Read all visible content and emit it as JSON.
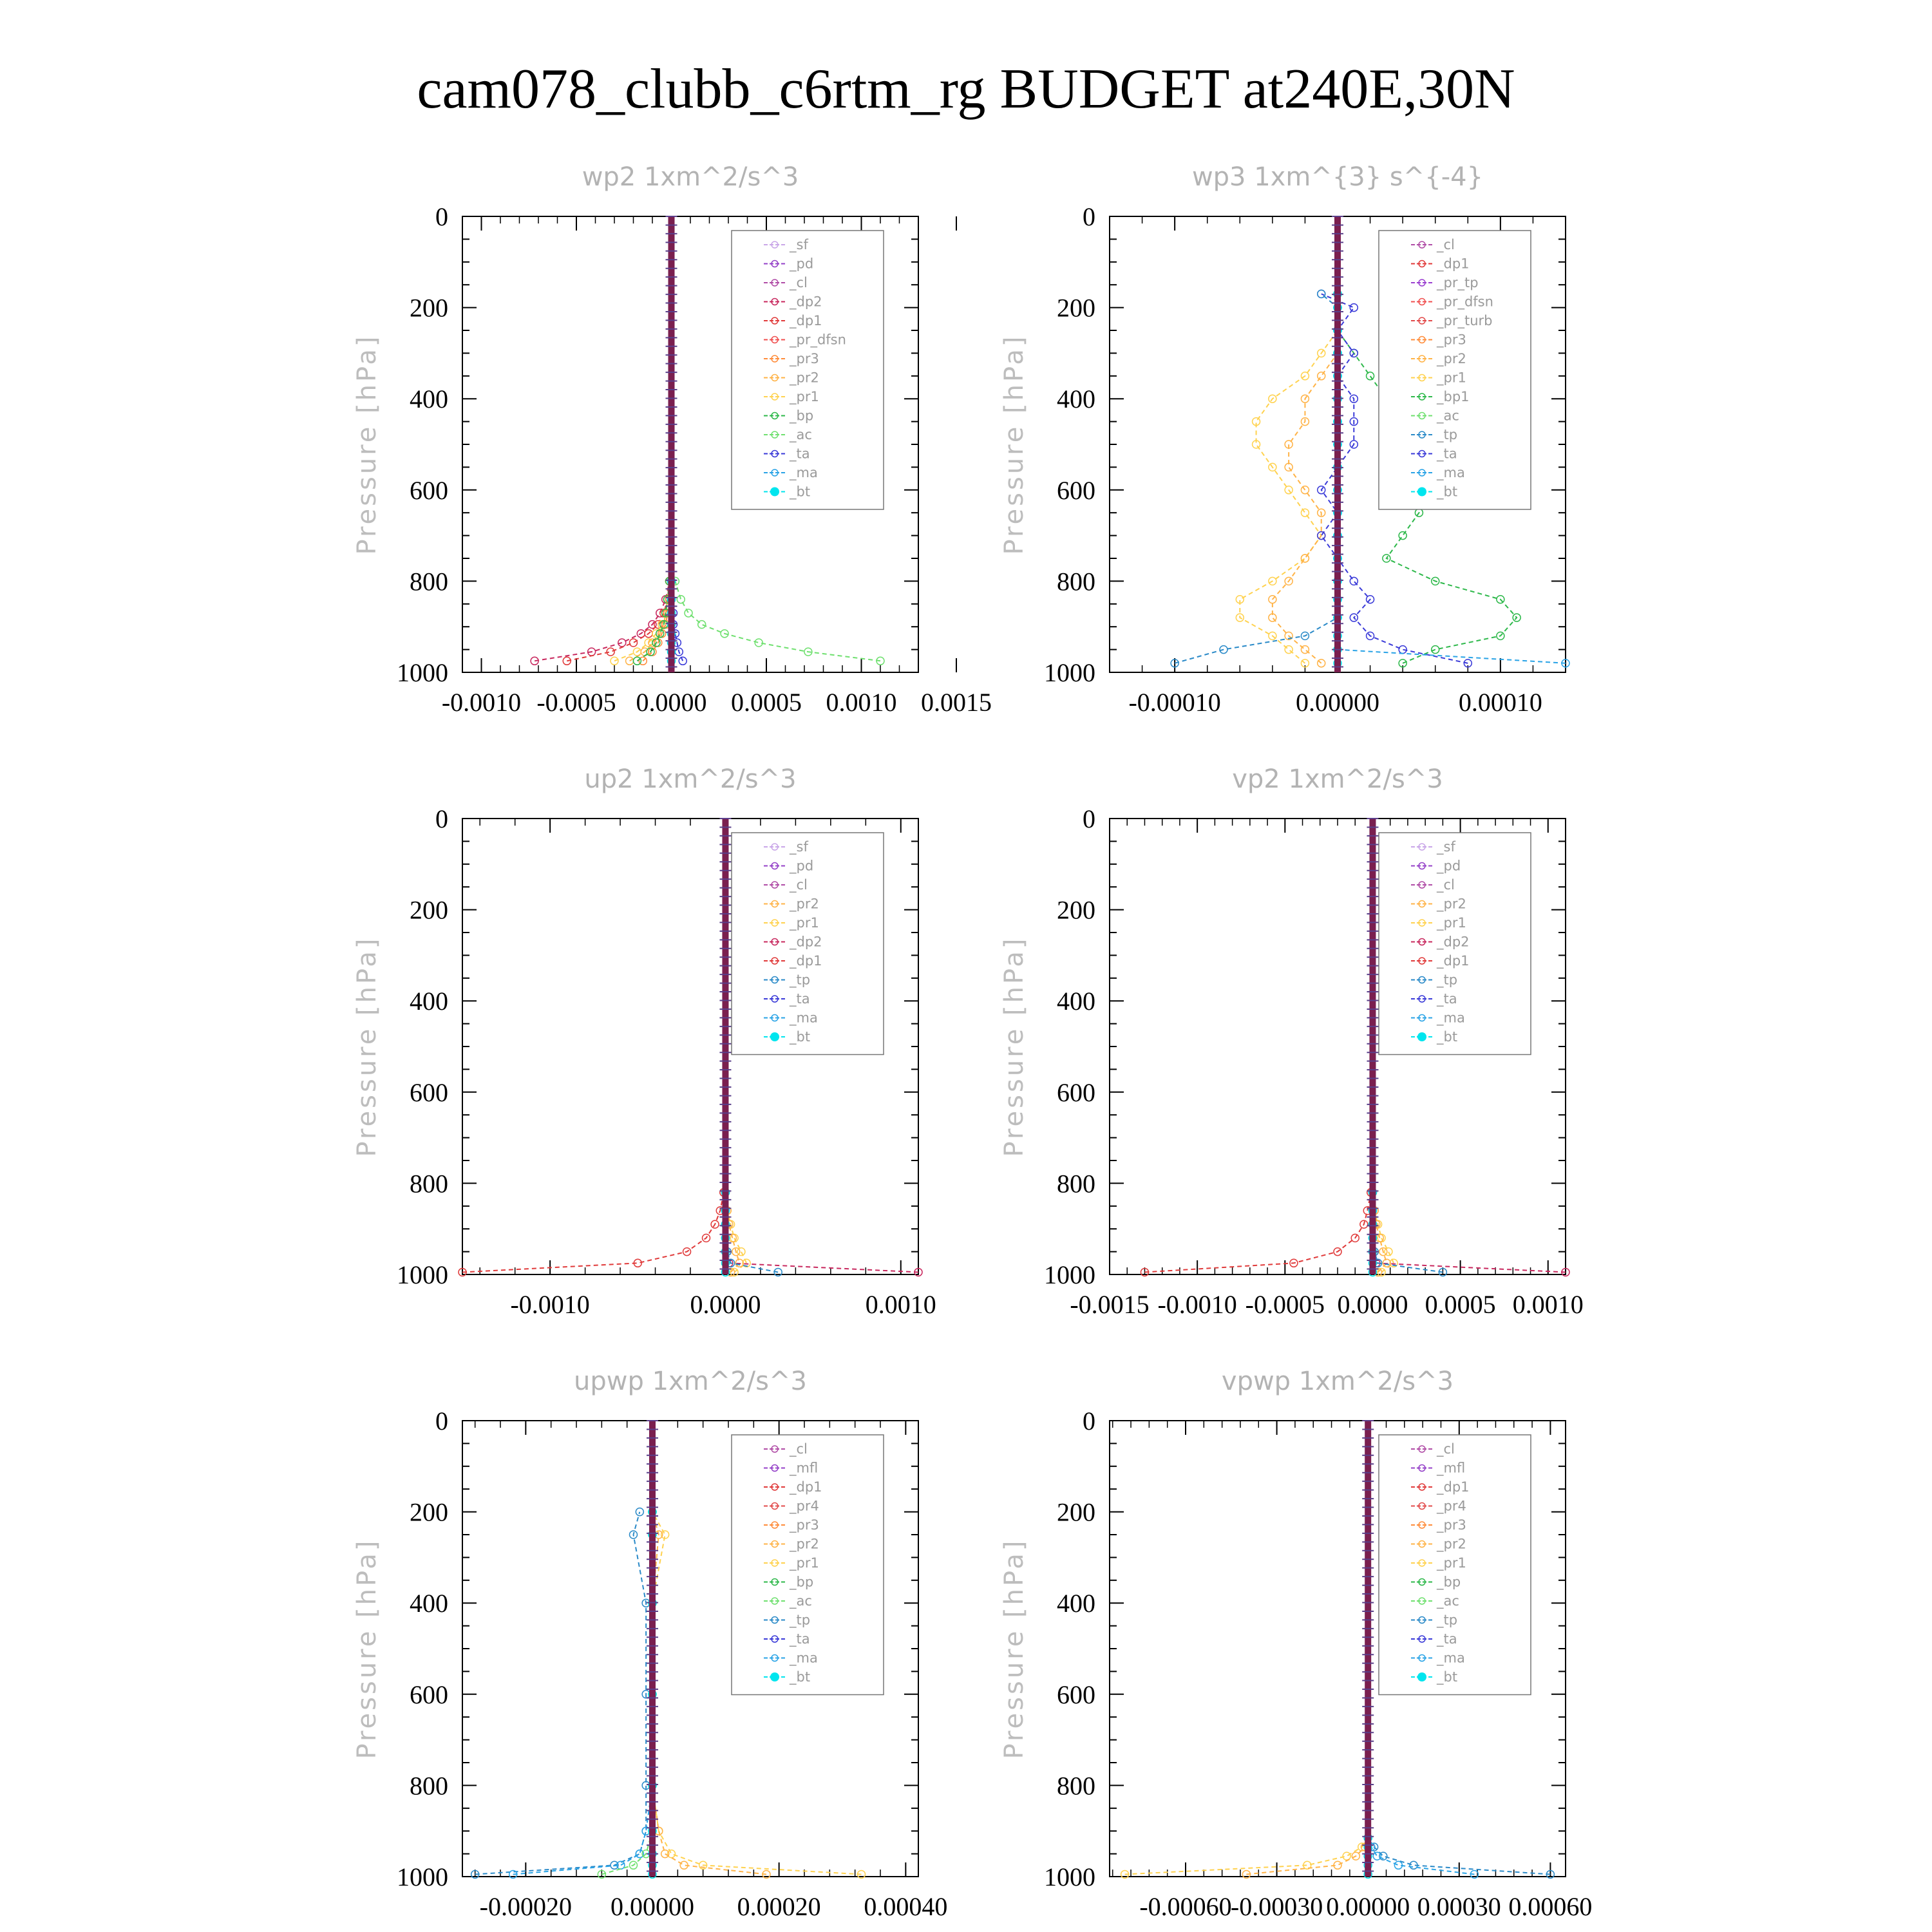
{
  "title": "cam078_clubb_c6rtm_rg  BUDGET at240E,30N",
  "y_axis": {
    "label": "Pressure [hPa]",
    "ticks": [
      0,
      200,
      400,
      600,
      800,
      1000
    ],
    "range": [
      0,
      1000
    ],
    "inverted": true
  },
  "series_colors": {
    "_sf": "#c9a6e8",
    "_pd": "#9440c8",
    "_cl": "#b04ca6",
    "_dp2": "#c8285e",
    "_dp1": "#e03a3a",
    "_pr_dfsn": "#f04f4f",
    "_pr_tp": "#9a3fd0",
    "_pr_turb": "#e24a4a",
    "_pr3": "#ff8c3a",
    "_pr2": "#ffb347",
    "_pr1": "#ffd24f",
    "_bp": "#2db84a",
    "_bp1": "#2db84a",
    "_ac": "#6fe06f",
    "_tp": "#2a8ac8",
    "_ta": "#3a3ad8",
    "_ma": "#29a3e6",
    "_bt": "#00e5ee",
    "_mfl": "#9440c8",
    "_pr4": "#e24a4a"
  },
  "chart_data": [
    {
      "type": "line",
      "title": "wp2   1xm^2/s^3",
      "xlim": [
        -0.0011,
        0.0013
      ],
      "xticks": [
        "-0.0010",
        "-0.0005",
        "0.0000",
        "0.0005",
        "0.0010",
        "0.0015"
      ],
      "xtick_values": [
        -0.001,
        -0.0005,
        0,
        0.0005,
        0.001,
        0.0015
      ],
      "legend": [
        "_sf",
        "_pd",
        "_cl",
        "_dp2",
        "_dp1",
        "_pr_dfsn",
        "_pr3",
        "_pr2",
        "_pr1",
        "_bp",
        "_ac",
        "_ta",
        "_ma",
        "_bt"
      ],
      "legend_position": "top-right",
      "pressure": [
        975,
        955,
        935,
        915,
        895,
        870,
        840,
        800
      ],
      "series": [
        {
          "name": "_dp2",
          "values": [
            -0.00072,
            -0.00042,
            -0.00026,
            -0.00016,
            -0.0001,
            -6e-05,
            -3e-05,
            -1e-05
          ]
        },
        {
          "name": "_dp1",
          "values": [
            -0.00055,
            -0.00032,
            -0.0002,
            -0.00012,
            -7e-05,
            -4e-05,
            -2e-05,
            -1e-05
          ]
        },
        {
          "name": "_pr1",
          "values": [
            -0.0003,
            -0.00018,
            -0.00012,
            -8e-05,
            -5e-05,
            -3e-05,
            -2e-05,
            -1e-05
          ]
        },
        {
          "name": "_pr2",
          "values": [
            -0.00022,
            -0.00014,
            -0.0001,
            -6e-05,
            -4e-05,
            -3e-05,
            -2e-05,
            -1e-05
          ]
        },
        {
          "name": "_pr3",
          "values": [
            -0.00015,
            -0.0001,
            -7e-05,
            -5e-05,
            -3e-05,
            -2e-05,
            -1e-05,
            0
          ]
        },
        {
          "name": "_bp",
          "values": [
            -0.00018,
            -0.00011,
            -8e-05,
            -6e-05,
            -4e-05,
            -3e-05,
            -2e-05,
            -1e-05
          ]
        },
        {
          "name": "_ac",
          "values": [
            0.0011,
            0.00072,
            0.00046,
            0.00028,
            0.00016,
            9e-05,
            5e-05,
            2e-05
          ]
        },
        {
          "name": "_ta",
          "values": [
            6e-05,
            4e-05,
            3e-05,
            2e-05,
            1e-05,
            1e-05,
            0,
            0
          ]
        },
        {
          "name": "_bt",
          "values": [
            0,
            0,
            0,
            0,
            0,
            0,
            0,
            0
          ]
        }
      ]
    },
    {
      "type": "line",
      "title": "wp3   1xm^{3} s^{-4}",
      "xlim": [
        -0.00014,
        0.00014
      ],
      "xticks": [
        "-0.00010",
        "0.00000",
        "0.00010"
      ],
      "xtick_values": [
        -0.0001,
        0,
        0.0001
      ],
      "legend": [
        "_cl",
        "_dp1",
        "_pr_tp",
        "_pr_dfsn",
        "_pr_turb",
        "_pr3",
        "_pr2",
        "_pr1",
        "_bp1",
        "_ac",
        "_tp",
        "_ta",
        "_ma",
        "_bt"
      ],
      "legend_position": "top-right",
      "pressure": [
        980,
        950,
        920,
        880,
        840,
        800,
        750,
        700,
        650,
        600,
        550,
        500,
        450,
        400,
        350,
        300,
        250,
        200,
        170
      ],
      "series": [
        {
          "name": "_bp1",
          "values": [
            4e-05,
            6e-05,
            0.0001,
            0.00011,
            0.0001,
            6e-05,
            3e-05,
            4e-05,
            5e-05,
            6e-05,
            7e-05,
            7e-05,
            5e-05,
            3e-05,
            2e-05,
            1e-05,
            0,
            0,
            0
          ]
        },
        {
          "name": "_pr1",
          "values": [
            -2e-05,
            -3e-05,
            -4e-05,
            -6e-05,
            -6e-05,
            -4e-05,
            -2e-05,
            -1e-05,
            -2e-05,
            -3e-05,
            -4e-05,
            -5e-05,
            -5e-05,
            -4e-05,
            -2e-05,
            -1e-05,
            0,
            0,
            0
          ]
        },
        {
          "name": "_pr2",
          "values": [
            -1e-05,
            -2e-05,
            -3e-05,
            -4e-05,
            -4e-05,
            -3e-05,
            -2e-05,
            -1e-05,
            -1e-05,
            -2e-05,
            -3e-05,
            -3e-05,
            -2e-05,
            -2e-05,
            -1e-05,
            0,
            0,
            0,
            0
          ]
        },
        {
          "name": "_ta",
          "values": [
            8e-05,
            4e-05,
            2e-05,
            1e-05,
            2e-05,
            1e-05,
            0,
            -1e-05,
            0,
            -1e-05,
            0,
            1e-05,
            1e-05,
            1e-05,
            0,
            1e-05,
            0,
            1e-05,
            -1e-05
          ]
        },
        {
          "name": "_tp",
          "values": [
            -0.0001,
            -7e-05,
            -2e-05,
            0,
            0,
            0,
            0,
            0,
            0,
            0,
            0,
            0,
            0,
            0,
            0,
            0,
            0,
            0,
            -1e-05
          ]
        },
        {
          "name": "_ma",
          "values": [
            0.00014,
            0,
            0,
            0,
            0,
            0,
            0,
            0,
            0,
            0,
            0,
            0,
            0,
            0,
            0,
            0,
            0,
            0,
            0
          ]
        },
        {
          "name": "_bt",
          "values": [
            0,
            0,
            0,
            0,
            0,
            0,
            0,
            0,
            0,
            0,
            0,
            0,
            0,
            0,
            0,
            0,
            0,
            0,
            0
          ]
        }
      ]
    },
    {
      "type": "line",
      "title": "up2   1xm^2/s^3",
      "xlim": [
        -0.0015,
        0.0011
      ],
      "xticks": [
        "-0.0010",
        "0.0000",
        "0.0010"
      ],
      "xtick_values": [
        -0.001,
        0,
        0.001
      ],
      "legend": [
        "_sf",
        "_pd",
        "_cl",
        "_pr2",
        "_pr1",
        "_dp2",
        "_dp1",
        "_tp",
        "_ta",
        "_ma",
        "_bt"
      ],
      "legend_position": "top-right",
      "pressure": [
        995,
        975,
        950,
        920,
        890,
        860,
        820
      ],
      "series": [
        {
          "name": "_dp1",
          "values": [
            -0.0015,
            -0.0005,
            -0.00022,
            -0.00011,
            -6e-05,
            -3e-05,
            -1e-05
          ]
        },
        {
          "name": "_pr1",
          "values": [
            5e-05,
            0.00012,
            9e-05,
            5e-05,
            3e-05,
            1e-05,
            0
          ]
        },
        {
          "name": "_pr2",
          "values": [
            3e-05,
            8e-05,
            6e-05,
            4e-05,
            2e-05,
            1e-05,
            0
          ]
        },
        {
          "name": "_dp2",
          "values": [
            0.0011,
            2e-05,
            1e-05,
            0,
            0,
            0,
            0
          ]
        },
        {
          "name": "_tp",
          "values": [
            0.0003,
            3e-05,
            1e-05,
            0,
            0,
            0,
            0
          ]
        },
        {
          "name": "_bt",
          "values": [
            0,
            0,
            0,
            0,
            0,
            0,
            0
          ]
        }
      ]
    },
    {
      "type": "line",
      "title": "vp2   1xm^2/s^3",
      "xlim": [
        -0.0015,
        0.0011
      ],
      "xticks": [
        "-0.0015",
        "-0.0010",
        "-0.0005",
        "0.0000",
        "0.0005",
        "0.0010"
      ],
      "xtick_values": [
        -0.0015,
        -0.001,
        -0.0005,
        0,
        0.0005,
        0.001
      ],
      "legend": [
        "_sf",
        "_pd",
        "_cl",
        "_pr2",
        "_pr1",
        "_dp2",
        "_dp1",
        "_tp",
        "_ta",
        "_ma",
        "_bt"
      ],
      "legend_position": "top-right",
      "pressure": [
        995,
        975,
        950,
        920,
        890,
        860,
        820
      ],
      "series": [
        {
          "name": "_dp1",
          "values": [
            -0.0013,
            -0.00045,
            -0.0002,
            -0.0001,
            -5e-05,
            -3e-05,
            -1e-05
          ]
        },
        {
          "name": "_pr1",
          "values": [
            5e-05,
            0.00012,
            9e-05,
            5e-05,
            3e-05,
            1e-05,
            0
          ]
        },
        {
          "name": "_pr2",
          "values": [
            3e-05,
            8e-05,
            6e-05,
            4e-05,
            2e-05,
            1e-05,
            0
          ]
        },
        {
          "name": "_dp2",
          "values": [
            0.0011,
            2e-05,
            1e-05,
            0,
            0,
            0,
            0
          ]
        },
        {
          "name": "_tp",
          "values": [
            0.0004,
            3e-05,
            1e-05,
            0,
            0,
            0,
            0
          ]
        },
        {
          "name": "_bt",
          "values": [
            0,
            0,
            0,
            0,
            0,
            0,
            0
          ]
        }
      ]
    },
    {
      "type": "line",
      "title": "upwp   1xm^2/s^3",
      "xlim": [
        -0.0003,
        0.00042
      ],
      "xticks": [
        "-0.00020",
        "0.00000",
        "0.00020",
        "0.00040"
      ],
      "xtick_values": [
        -0.0002,
        0,
        0.0002,
        0.0004
      ],
      "legend": [
        "_cl",
        "_mfl",
        "_dp1",
        "_pr4",
        "_pr3",
        "_pr2",
        "_pr1",
        "_bp",
        "_ac",
        "_tp",
        "_ta",
        "_ma",
        "_bt"
      ],
      "legend_position": "top-right",
      "pressure": [
        995,
        975,
        950,
        900,
        800,
        600,
        400,
        250,
        200
      ],
      "series": [
        {
          "name": "_pr1",
          "values": [
            0.00033,
            8e-05,
            3e-05,
            1e-05,
            0,
            0,
            0,
            2e-05,
            0
          ]
        },
        {
          "name": "_pr2",
          "values": [
            0.00018,
            5e-05,
            2e-05,
            1e-05,
            0,
            0,
            0,
            1e-05,
            0
          ]
        },
        {
          "name": "_tp",
          "values": [
            -0.00028,
            -6e-05,
            -2e-05,
            -1e-05,
            -1e-05,
            -1e-05,
            -1e-05,
            -3e-05,
            -2e-05
          ]
        },
        {
          "name": "_ma",
          "values": [
            -0.00022,
            -5e-05,
            -2e-05,
            -1e-05,
            0,
            0,
            0,
            0,
            0
          ]
        },
        {
          "name": "_ac",
          "values": [
            -8e-05,
            -3e-05,
            -1e-05,
            0,
            0,
            0,
            0,
            0,
            0
          ]
        },
        {
          "name": "_bt",
          "values": [
            0,
            0,
            0,
            0,
            0,
            0,
            0,
            0,
            0
          ]
        }
      ]
    },
    {
      "type": "line",
      "title": "vpwp   1xm^2/s^3",
      "xlim": [
        -0.00085,
        0.00065
      ],
      "xticks": [
        "-0.00060",
        "-0.00030",
        "0.00000",
        "0.00030",
        "0.00060"
      ],
      "xtick_values": [
        -0.0006,
        -0.0003,
        0,
        0.0003,
        0.0006
      ],
      "legend": [
        "_cl",
        "_mfl",
        "_dp1",
        "_pr4",
        "_pr3",
        "_pr2",
        "_pr1",
        "_bp",
        "_ac",
        "_tp",
        "_ta",
        "_ma",
        "_bt"
      ],
      "legend_position": "top-right",
      "pressure": [
        995,
        975,
        955,
        935,
        915
      ],
      "series": [
        {
          "name": "_pr1",
          "values": [
            -0.0008,
            -0.0002,
            -7e-05,
            -2e-05,
            0
          ]
        },
        {
          "name": "_pr2",
          "values": [
            -0.0004,
            -0.0001,
            -4e-05,
            -1e-05,
            0
          ]
        },
        {
          "name": "_tp",
          "values": [
            0.0006,
            0.00015,
            5e-05,
            2e-05,
            0
          ]
        },
        {
          "name": "_ma",
          "values": [
            0.00035,
            0.0001,
            3e-05,
            1e-05,
            0
          ]
        },
        {
          "name": "_bt",
          "values": [
            0,
            0,
            0,
            0,
            0
          ]
        }
      ]
    }
  ]
}
